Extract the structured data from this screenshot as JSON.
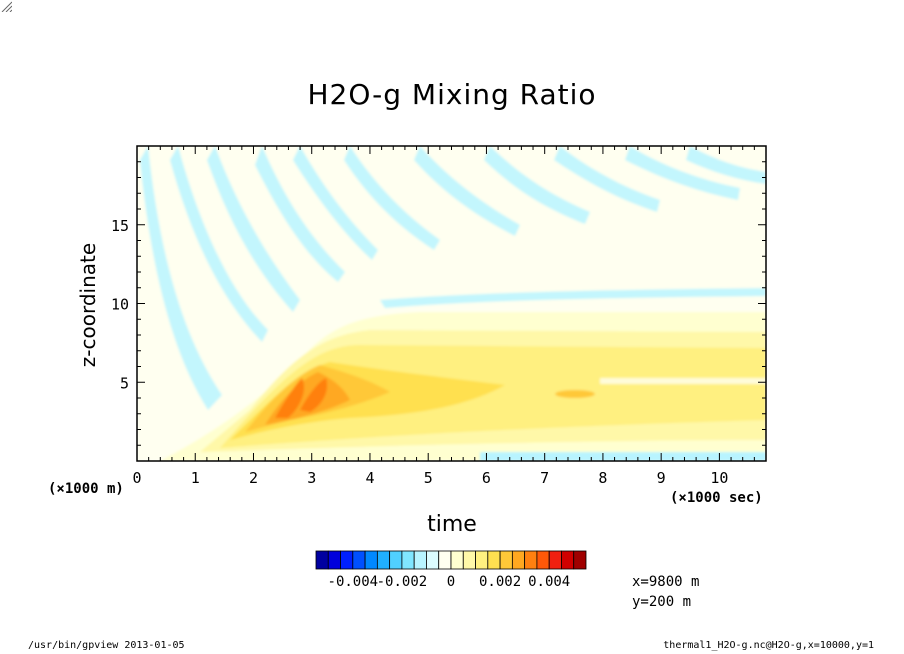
{
  "chart_data": {
    "type": "heatmap",
    "title": "H2O-g Mixing Ratio",
    "xlabel": "time",
    "ylabel": "z-coordinate",
    "x_unit_label": "(×1000 sec)",
    "z_unit_label": "(×1000 m)",
    "xlim": [
      0,
      10.8
    ],
    "ylim": [
      0,
      20
    ],
    "xticks": [
      0,
      1,
      2,
      3,
      4,
      5,
      6,
      7,
      8,
      9,
      10
    ],
    "yticks": [
      5,
      10,
      15
    ],
    "colorbar": {
      "levels": [
        -0.0055,
        -0.005,
        -0.0045,
        -0.004,
        -0.0035,
        -0.003,
        -0.0025,
        -0.002,
        -0.0015,
        -0.001,
        -0.0005,
        0,
        0.0005,
        0.001,
        0.0015,
        0.002,
        0.0025,
        0.003,
        0.0035,
        0.004,
        0.0045,
        0.005,
        0.0055
      ],
      "colors": [
        "#0000a0",
        "#0000dc",
        "#0020ff",
        "#0050ff",
        "#0088ff",
        "#20b0ff",
        "#50d0ff",
        "#80e6ff",
        "#b8f4ff",
        "#dcfcff",
        "#fffff0",
        "#ffffd0",
        "#fff8a8",
        "#fff080",
        "#ffe050",
        "#ffc838",
        "#ffa820",
        "#ff8010",
        "#ff5808",
        "#f02010",
        "#d00000",
        "#a00000"
      ],
      "labels": [
        {
          "value": -0.004,
          "text": "-0.004"
        },
        {
          "value": -0.002,
          "text": "-0.002"
        },
        {
          "value": 0,
          "text": "0"
        },
        {
          "value": 0.002,
          "text": "0.002"
        },
        {
          "value": 0.004,
          "text": "0.004"
        }
      ]
    }
  },
  "annotations": {
    "x_position": "x=9800  m",
    "y_position": "y=200  m"
  },
  "footer": {
    "program": "/usr/bin/gpview  2013-01-05",
    "source": "thermal1_H2O-g.nc@H2O-g,x=10000,y=1"
  },
  "colors": {
    "background": "#ffffff",
    "axis": "#000000"
  }
}
